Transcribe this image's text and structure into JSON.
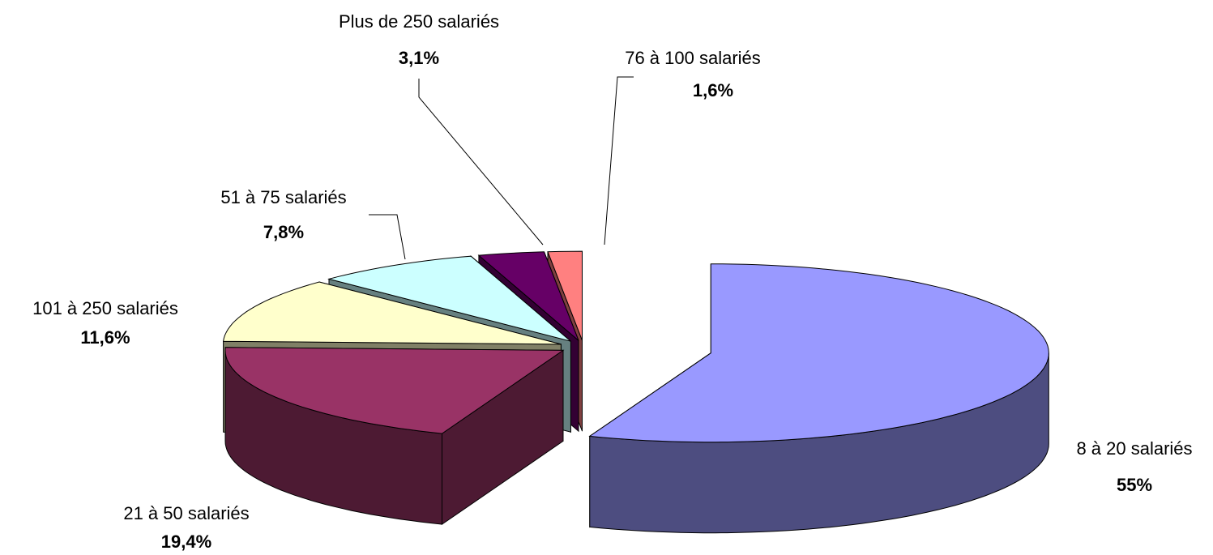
{
  "chart_data": {
    "type": "pie3d",
    "categories": [
      "8 à 20 salariés",
      "21 à 50 salariés",
      "101 à 250 salariés",
      "51 à 75 salariés",
      "Plus de 250 salariés",
      "76 à 100 salariés"
    ],
    "values": [
      55,
      19.4,
      11.6,
      7.8,
      3.1,
      1.6
    ],
    "value_labels": [
      "55%",
      "19,4%",
      "11,6%",
      "7,8%",
      "3,1%",
      "1,6%"
    ],
    "colors": [
      "#9999ff",
      "#993366",
      "#ffffcc",
      "#ccffff",
      "#660066",
      "#ff8080"
    ]
  }
}
